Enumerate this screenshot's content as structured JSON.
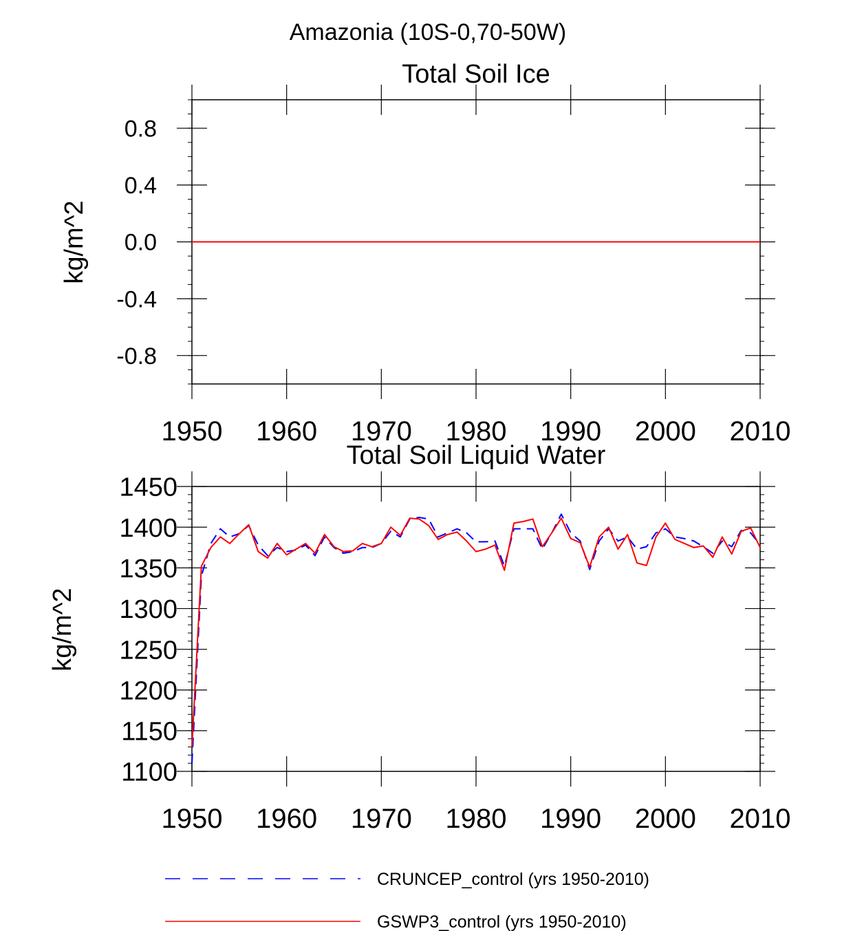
{
  "page": {
    "title": "Amazonia (10S-0,70-50W)"
  },
  "legend": {
    "entries": [
      {
        "name": "CRUNCEP_control (yrs 1950-2010)",
        "color": "#0000ff",
        "style": "dashed"
      },
      {
        "name": "GSWP3_control (yrs 1950-2010)",
        "color": "#ff0000",
        "style": "solid"
      }
    ]
  },
  "chart_data": [
    {
      "type": "line",
      "title": "Total Soil Ice",
      "xlabel": "",
      "ylabel": "kg/m^2",
      "xlim": [
        1950,
        2010
      ],
      "ylim": [
        -1.0,
        1.0
      ],
      "xticks": [
        1950,
        1960,
        1970,
        1980,
        1990,
        2000,
        2010
      ],
      "xtick_labels": [
        "1950",
        "1960",
        "1970",
        "1980",
        "1990",
        "2000",
        "2010"
      ],
      "yticks": [
        0.8,
        0.4,
        0.0,
        -0.4,
        -0.8
      ],
      "ytick_labels": [
        "0.8",
        "0.4",
        "0.0",
        "-0.4",
        "-0.8"
      ],
      "yminor_step": 0.1,
      "x": [
        1950,
        2010
      ],
      "series": [
        {
          "name": "CRUNCEP_control (yrs 1950-2010)",
          "color": "#0000ff",
          "style": "dashed",
          "values": [
            0.0,
            0.0
          ]
        },
        {
          "name": "GSWP3_control (yrs 1950-2010)",
          "color": "#ff0000",
          "style": "solid",
          "values": [
            0.0,
            0.0
          ]
        }
      ]
    },
    {
      "type": "line",
      "title": "Total Soil Liquid Water",
      "xlabel": "",
      "ylabel": "kg/m^2",
      "xlim": [
        1950,
        2010
      ],
      "ylim": [
        1100,
        1450
      ],
      "xticks": [
        1950,
        1960,
        1970,
        1980,
        1990,
        2000,
        2010
      ],
      "xtick_labels": [
        "1950",
        "1960",
        "1970",
        "1980",
        "1990",
        "2000",
        "2010"
      ],
      "yticks": [
        1450,
        1400,
        1350,
        1300,
        1250,
        1200,
        1150,
        1100
      ],
      "ytick_labels": [
        "1450",
        "1400",
        "1350",
        "1300",
        "1250",
        "1200",
        "1150",
        "1100"
      ],
      "yminor_step": 10,
      "x": [
        1950,
        1951,
        1952,
        1953,
        1954,
        1955,
        1956,
        1957,
        1958,
        1959,
        1960,
        1961,
        1962,
        1963,
        1964,
        1965,
        1966,
        1967,
        1968,
        1969,
        1970,
        1971,
        1972,
        1973,
        1974,
        1975,
        1976,
        1977,
        1978,
        1979,
        1980,
        1981,
        1982,
        1983,
        1984,
        1985,
        1986,
        1987,
        1988,
        1989,
        1990,
        1991,
        1992,
        1993,
        1994,
        1995,
        1996,
        1997,
        1998,
        1999,
        2000,
        2001,
        2002,
        2003,
        2004,
        2005,
        2006,
        2007,
        2008,
        2009,
        2010
      ],
      "series": [
        {
          "name": "CRUNCEP_control (yrs 1950-2010)",
          "color": "#0000ff",
          "style": "dashed",
          "values": [
            1110,
            1340,
            1380,
            1398,
            1388,
            1392,
            1402,
            1378,
            1365,
            1375,
            1370,
            1372,
            1378,
            1365,
            1388,
            1375,
            1368,
            1370,
            1375,
            1375,
            1380,
            1395,
            1388,
            1410,
            1412,
            1410,
            1388,
            1393,
            1398,
            1393,
            1382,
            1382,
            1383,
            1352,
            1398,
            1398,
            1398,
            1373,
            1393,
            1416,
            1393,
            1383,
            1348,
            1383,
            1398,
            1383,
            1388,
            1373,
            1376,
            1393,
            1398,
            1388,
            1386,
            1383,
            1376,
            1368,
            1383,
            1376,
            1396,
            1393,
            1378
          ]
        },
        {
          "name": "GSWP3_control (yrs 1950-2010)",
          "color": "#ff0000",
          "style": "solid",
          "values": [
            1130,
            1352,
            1375,
            1388,
            1380,
            1392,
            1403,
            1370,
            1362,
            1380,
            1366,
            1373,
            1380,
            1368,
            1391,
            1376,
            1370,
            1371,
            1380,
            1376,
            1380,
            1400,
            1390,
            1411,
            1410,
            1402,
            1385,
            1391,
            1394,
            1383,
            1370,
            1373,
            1378,
            1347,
            1405,
            1407,
            1410,
            1376,
            1393,
            1411,
            1386,
            1381,
            1351,
            1388,
            1400,
            1373,
            1391,
            1356,
            1353,
            1388,
            1405,
            1385,
            1380,
            1375,
            1377,
            1363,
            1388,
            1367,
            1395,
            1399,
            1375
          ]
        }
      ]
    }
  ]
}
